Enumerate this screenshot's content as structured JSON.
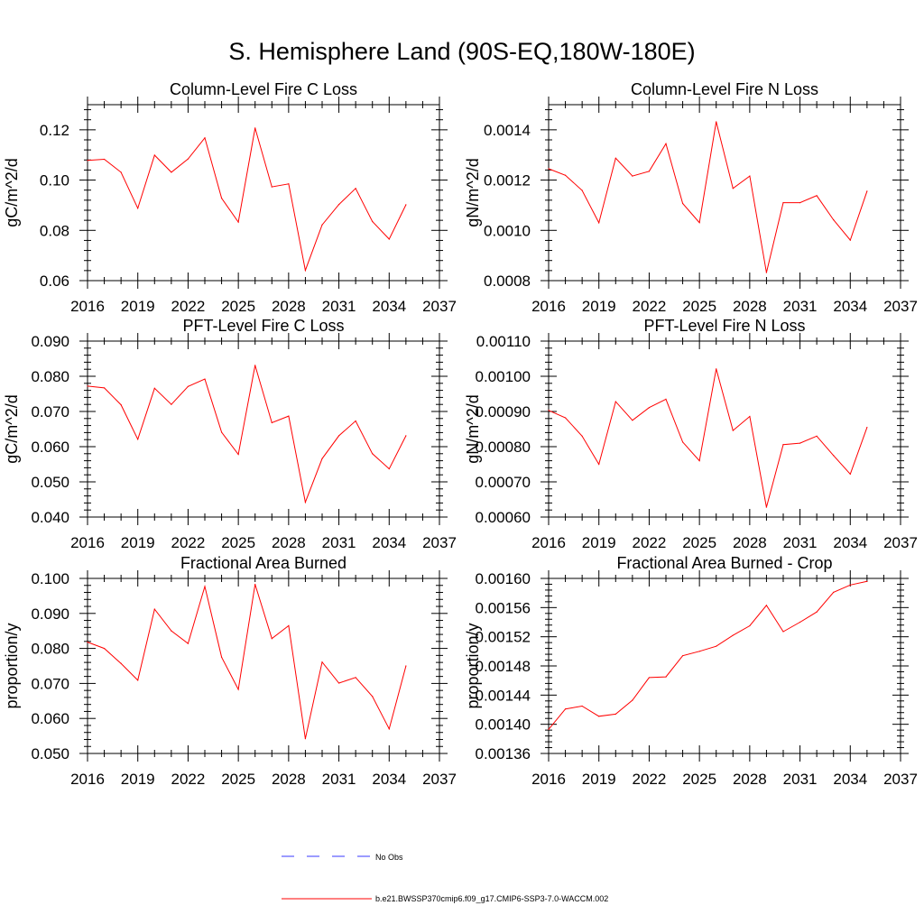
{
  "figure": {
    "title": "S. Hemisphere Land (90S-EQ,180W-180E)",
    "legend": [
      {
        "label": "No Obs",
        "color": "#3a3aff",
        "style": "dashed"
      },
      {
        "label": "b.e21.BWSSP370cmip6.f09_g17.CMIP6-SSP3-7.0-WACCM.002",
        "color": "#ff0000",
        "style": "solid"
      }
    ]
  },
  "chart_data": [
    {
      "type": "line",
      "title": "Column-Level Fire C Loss",
      "ylabel": "gC/m^2/d",
      "xlim": [
        2016,
        2037
      ],
      "xticks": [
        "2016",
        "2019",
        "2022",
        "2025",
        "2028",
        "2031",
        "2034",
        "2037"
      ],
      "ylim": [
        0.06,
        0.13
      ],
      "yticks": [
        "0.06",
        "0.08",
        "0.10",
        "0.12"
      ],
      "ytick_values": [
        0.06,
        0.08,
        0.1,
        0.12
      ],
      "series": [
        {
          "color": "#ff0000",
          "x": [
            2016,
            2017,
            2018,
            2019,
            2020,
            2021,
            2022,
            2023,
            2024,
            2025,
            2026,
            2027,
            2028,
            2029,
            2030,
            2031,
            2032,
            2033,
            2034,
            2035
          ],
          "values": [
            0.1078,
            0.1083,
            0.1031,
            0.0888,
            0.1099,
            0.1031,
            0.1084,
            0.1168,
            0.0928,
            0.0833,
            0.1207,
            0.0973,
            0.0985,
            0.0641,
            0.0822,
            0.0903,
            0.0967,
            0.0835,
            0.0765,
            0.0902
          ]
        }
      ]
    },
    {
      "type": "line",
      "title": "Column-Level Fire N Loss",
      "ylabel": "gN/m^2/d",
      "xlim": [
        2016,
        2037
      ],
      "xticks": [
        "2016",
        "2019",
        "2022",
        "2025",
        "2028",
        "2031",
        "2034",
        "2037"
      ],
      "ylim": [
        0.0008,
        0.0015
      ],
      "yticks": [
        "0.0008",
        "0.0010",
        "0.0012",
        "0.0014"
      ],
      "ytick_values": [
        0.0008,
        0.001,
        0.0012,
        0.0014
      ],
      "series": [
        {
          "color": "#ff0000",
          "x": [
            2016,
            2017,
            2018,
            2019,
            2020,
            2021,
            2022,
            2023,
            2024,
            2025,
            2026,
            2027,
            2028,
            2029,
            2030,
            2031,
            2032,
            2033,
            2034,
            2035
          ],
          "values": [
            0.001245,
            0.001219,
            0.001159,
            0.00103,
            0.001287,
            0.001216,
            0.001235,
            0.001345,
            0.001107,
            0.001031,
            0.001432,
            0.001167,
            0.001216,
            0.000832,
            0.00111,
            0.00111,
            0.001138,
            0.001042,
            0.000961,
            0.001156
          ]
        }
      ]
    },
    {
      "type": "line",
      "title": "PFT-Level Fire C Loss",
      "ylabel": "gC/m^2/d",
      "xlim": [
        2016,
        2037
      ],
      "xticks": [
        "2016",
        "2019",
        "2022",
        "2025",
        "2028",
        "2031",
        "2034",
        "2037"
      ],
      "ylim": [
        0.04,
        0.09
      ],
      "yticks": [
        "0.040",
        "0.050",
        "0.060",
        "0.070",
        "0.080",
        "0.090"
      ],
      "ytick_values": [
        0.04,
        0.05,
        0.06,
        0.07,
        0.08,
        0.09
      ],
      "series": [
        {
          "color": "#ff0000",
          "x": [
            2016,
            2017,
            2018,
            2019,
            2020,
            2021,
            2022,
            2023,
            2024,
            2025,
            2026,
            2027,
            2028,
            2029,
            2030,
            2031,
            2032,
            2033,
            2034,
            2035
          ],
          "values": [
            0.0772,
            0.0767,
            0.0719,
            0.0621,
            0.0766,
            0.072,
            0.0771,
            0.0792,
            0.0641,
            0.0578,
            0.0831,
            0.0668,
            0.0687,
            0.0442,
            0.0566,
            0.0631,
            0.0673,
            0.058,
            0.0537,
            0.0631
          ]
        }
      ]
    },
    {
      "type": "line",
      "title": "PFT-Level Fire N Loss",
      "ylabel": "gN/m^2/d",
      "xlim": [
        2016,
        2037
      ],
      "xticks": [
        "2016",
        "2019",
        "2022",
        "2025",
        "2028",
        "2031",
        "2034",
        "2037"
      ],
      "ylim": [
        0.0006,
        0.0011
      ],
      "yticks": [
        "0.00060",
        "0.00070",
        "0.00080",
        "0.00090",
        "0.00100",
        "0.00110"
      ],
      "ytick_values": [
        0.0006,
        0.0007,
        0.0008,
        0.0009,
        0.001,
        0.0011
      ],
      "series": [
        {
          "color": "#ff0000",
          "x": [
            2016,
            2017,
            2018,
            2019,
            2020,
            2021,
            2022,
            2023,
            2024,
            2025,
            2026,
            2027,
            2028,
            2029,
            2030,
            2031,
            2032,
            2033,
            2034,
            2035
          ],
          "values": [
            0.000903,
            0.000882,
            0.00083,
            0.00075,
            0.000928,
            0.000875,
            0.000911,
            0.000935,
            0.000813,
            0.00076,
            0.001021,
            0.000846,
            0.000886,
            0.000628,
            0.000806,
            0.00081,
            0.00083,
            0.000775,
            0.000722,
            0.000855
          ]
        }
      ]
    },
    {
      "type": "line",
      "title": "Fractional Area Burned",
      "ylabel": "proportion/y",
      "xlim": [
        2016,
        2037
      ],
      "xticks": [
        "2016",
        "2019",
        "2022",
        "2025",
        "2028",
        "2031",
        "2034",
        "2037"
      ],
      "ylim": [
        0.05,
        0.1
      ],
      "yticks": [
        "0.050",
        "0.060",
        "0.070",
        "0.080",
        "0.090",
        "0.100"
      ],
      "ytick_values": [
        0.05,
        0.06,
        0.07,
        0.08,
        0.09,
        0.1
      ],
      "series": [
        {
          "color": "#ff0000",
          "x": [
            2016,
            2017,
            2018,
            2019,
            2020,
            2021,
            2022,
            2023,
            2024,
            2025,
            2026,
            2027,
            2028,
            2029,
            2030,
            2031,
            2032,
            2033,
            2034,
            2035
          ],
          "values": [
            0.0818,
            0.08,
            0.0757,
            0.0709,
            0.0912,
            0.085,
            0.0814,
            0.0977,
            0.0775,
            0.0683,
            0.0983,
            0.0828,
            0.0865,
            0.0542,
            0.0761,
            0.0701,
            0.0717,
            0.0663,
            0.057,
            0.075
          ]
        }
      ]
    },
    {
      "type": "line",
      "title": "Fractional Area Burned - Crop",
      "ylabel": "proportion/y",
      "xlim": [
        2016,
        2037
      ],
      "xticks": [
        "2016",
        "2019",
        "2022",
        "2025",
        "2028",
        "2031",
        "2034",
        "2037"
      ],
      "ylim": [
        0.00136,
        0.0016
      ],
      "yticks": [
        "0.00136",
        "0.00140",
        "0.00144",
        "0.00148",
        "0.00152",
        "0.00156",
        "0.00160"
      ],
      "ytick_values": [
        0.00136,
        0.0014,
        0.00144,
        0.00148,
        0.00152,
        0.00156,
        0.0016
      ],
      "series": [
        {
          "color": "#ff0000",
          "x": [
            2016,
            2017,
            2018,
            2019,
            2020,
            2021,
            2022,
            2023,
            2024,
            2025,
            2026,
            2027,
            2028,
            2029,
            2030,
            2031,
            2032,
            2033,
            2034,
            2035
          ],
          "values": [
            0.001393,
            0.001421,
            0.001425,
            0.001411,
            0.001414,
            0.001433,
            0.001464,
            0.001465,
            0.001494,
            0.0015,
            0.001507,
            0.001522,
            0.001535,
            0.001563,
            0.001527,
            0.00154,
            0.001554,
            0.001581,
            0.001591,
            0.001596
          ]
        }
      ]
    }
  ]
}
